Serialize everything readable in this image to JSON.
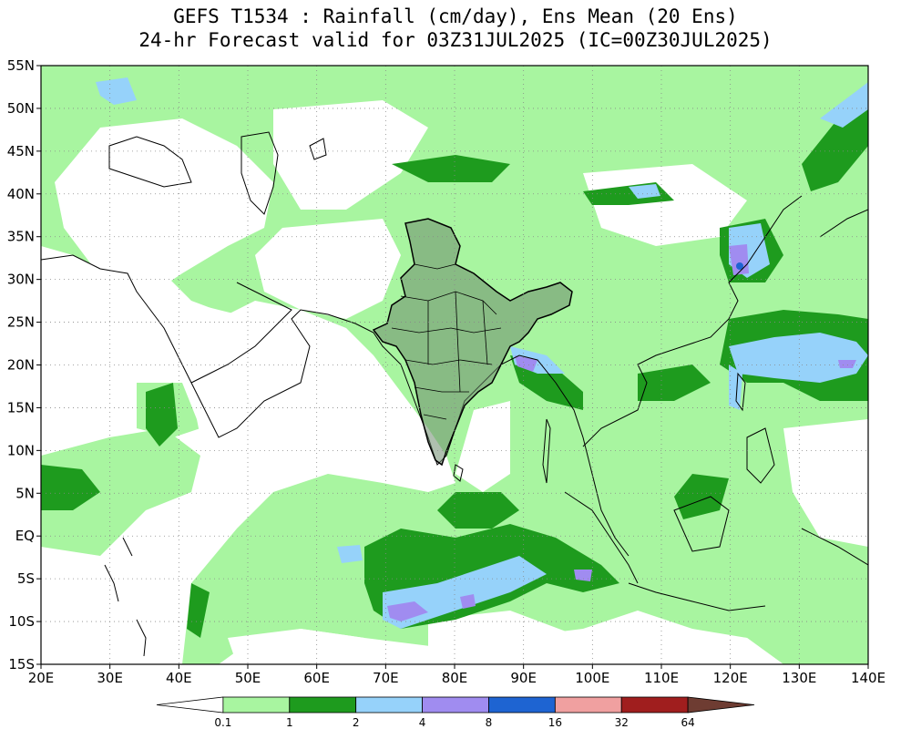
{
  "title": {
    "line1": "GEFS T1534 : Rainfall (cm/day), Ens Mean (20 Ens)",
    "line2": "24-hr Forecast valid for 03Z31JUL2025 (IC=00Z30JUL2025)"
  },
  "map": {
    "lon_range": [
      20,
      140
    ],
    "lat_range": [
      -15,
      55
    ],
    "lat_ticks": [
      {
        "value": 55,
        "label": "55N"
      },
      {
        "value": 50,
        "label": "50N"
      },
      {
        "value": 45,
        "label": "45N"
      },
      {
        "value": 40,
        "label": "40N"
      },
      {
        "value": 35,
        "label": "35N"
      },
      {
        "value": 30,
        "label": "30N"
      },
      {
        "value": 25,
        "label": "25N"
      },
      {
        "value": 20,
        "label": "20N"
      },
      {
        "value": 15,
        "label": "15N"
      },
      {
        "value": 10,
        "label": "10N"
      },
      {
        "value": 5,
        "label": "5N"
      },
      {
        "value": 0,
        "label": "EQ"
      },
      {
        "value": -5,
        "label": "5S"
      },
      {
        "value": -10,
        "label": "10S"
      },
      {
        "value": -15,
        "label": "15S"
      }
    ],
    "lon_ticks": [
      {
        "value": 20,
        "label": "20E"
      },
      {
        "value": 30,
        "label": "30E"
      },
      {
        "value": 40,
        "label": "40E"
      },
      {
        "value": 50,
        "label": "50E"
      },
      {
        "value": 60,
        "label": "60E"
      },
      {
        "value": 70,
        "label": "70E"
      },
      {
        "value": 80,
        "label": "80E"
      },
      {
        "value": 90,
        "label": "90E"
      },
      {
        "value": 100,
        "label": "100E"
      },
      {
        "value": 110,
        "label": "110E"
      },
      {
        "value": 120,
        "label": "120E"
      },
      {
        "value": 130,
        "label": "130E"
      },
      {
        "value": 140,
        "label": "140E"
      }
    ],
    "grid": true,
    "colors": {
      "light_green": "#a8f5a0",
      "green": "#1e9b1e",
      "light_blue": "#96d2fa",
      "lavender": "#a08cf0",
      "blue": "#1e64d2",
      "coast": "#000000"
    }
  },
  "colorbar": {
    "colors": [
      "#ffffff",
      "#a8f5a0",
      "#1e9b1e",
      "#96d2fa",
      "#a08cf0",
      "#1e64d2",
      "#f0a0a0",
      "#a01e1e",
      "#6e3c32"
    ],
    "labels": [
      "0.1",
      "1",
      "2",
      "4",
      "8",
      "16",
      "32",
      "64"
    ]
  }
}
